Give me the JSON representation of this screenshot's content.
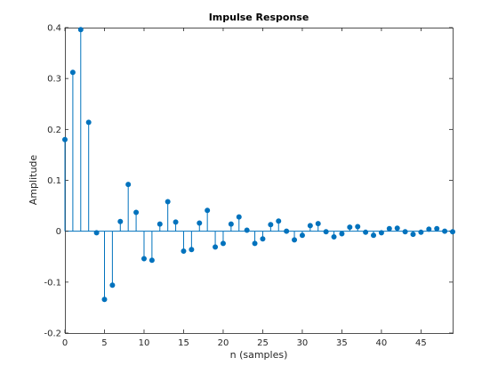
{
  "chart_data": {
    "type": "stem",
    "title": "Impulse Response",
    "xlabel": "n (samples)",
    "ylabel": "Amplitude",
    "xlim": [
      0,
      49
    ],
    "ylim": [
      -0.2,
      0.4
    ],
    "xticks": [
      0,
      5,
      10,
      15,
      20,
      25,
      30,
      35,
      40,
      45
    ],
    "yticks": [
      -0.2,
      -0.1,
      0,
      0.1,
      0.2,
      0.3,
      0.4
    ],
    "ytick_labels": [
      "-0.2",
      "-0.1",
      "0",
      "0.1",
      "0.2",
      "0.3",
      "0.4"
    ],
    "grid": false,
    "color": "#0072BD",
    "series": [
      {
        "x": [
          0,
          1,
          2,
          3,
          4,
          5,
          6,
          7,
          8,
          9,
          10,
          11,
          12,
          13,
          14,
          15,
          16,
          17,
          18,
          19,
          20,
          21,
          22,
          23,
          24,
          25,
          26,
          27,
          28,
          29,
          30,
          31,
          32,
          33,
          34,
          35,
          36,
          37,
          38,
          39,
          40,
          41,
          42,
          43,
          44,
          45,
          46,
          47,
          48,
          49
        ],
        "values": [
          0.18,
          0.312,
          0.396,
          0.214,
          -0.003,
          -0.134,
          -0.106,
          0.019,
          0.092,
          0.037,
          -0.054,
          -0.057,
          0.014,
          0.058,
          0.018,
          -0.039,
          -0.036,
          0.016,
          0.041,
          -0.031,
          -0.024,
          0.014,
          0.028,
          0.002,
          -0.024,
          -0.015,
          0.013,
          0.02,
          0.0,
          -0.017,
          -0.008,
          0.011,
          0.015,
          -0.001,
          -0.011,
          -0.005,
          0.008,
          0.009,
          -0.002,
          -0.008,
          -0.003,
          0.005,
          0.006,
          -0.001,
          -0.006,
          -0.002,
          0.004,
          0.005,
          0.0,
          -0.001
        ]
      }
    ]
  }
}
